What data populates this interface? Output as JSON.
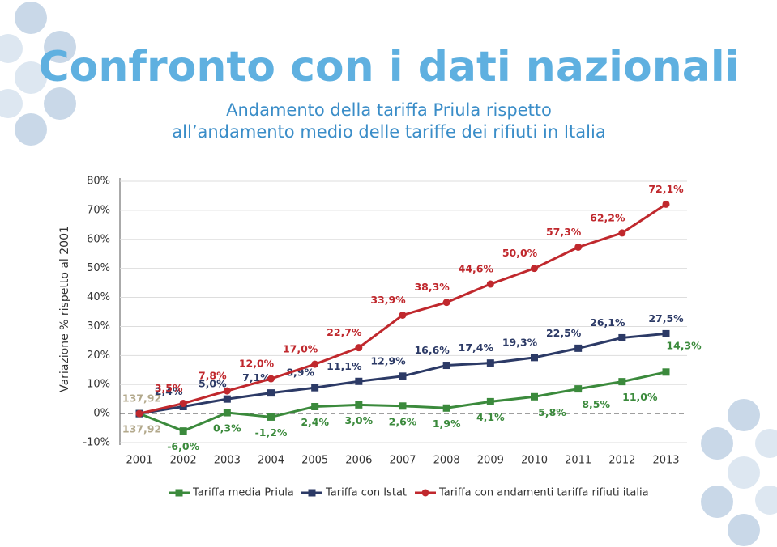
{
  "chart_data": {
    "type": "line",
    "title": "Confronto con i dati nazionali",
    "subtitle": [
      "Andamento della tariffa Priula rispetto",
      "all’andamento medio delle tariffe dei rifiuti in Italia"
    ],
    "y_label": "Variazione % rispetto al 2001",
    "categories": [
      "2001",
      "2002",
      "2003",
      "2004",
      "2005",
      "2006",
      "2007",
      "2008",
      "2009",
      "2010",
      "2011",
      "2012",
      "2013"
    ],
    "series": [
      {
        "name": "Tariffa media Priula",
        "color": "#3b8a3c",
        "values": [
          0,
          -6.0,
          0.3,
          -1.2,
          2.4,
          3.0,
          2.6,
          1.9,
          4.1,
          5.8,
          8.5,
          11.0,
          14.3
        ],
        "value_labels": [
          null,
          "-6,0%",
          "0,3%",
          "-1,2%",
          "2,4%",
          "3,0%",
          "2,6%",
          "1,9%",
          "4,1%",
          "5,8%",
          "8,5%",
          "11,0%",
          "14,3%"
        ]
      },
      {
        "name": "Tariffa con Istat",
        "color": "#2c3a66",
        "values": [
          0,
          2.4,
          5.0,
          7.1,
          8.9,
          11.1,
          12.9,
          16.6,
          17.4,
          19.3,
          22.5,
          26.1,
          27.5
        ],
        "value_labels": [
          null,
          "2,4%",
          "5,0%",
          "7,1%",
          "8,9%",
          "11,1%",
          "12,9%",
          "16,6%",
          "17,4%",
          "19,3%",
          "22,5%",
          "26,1%",
          "27,5%"
        ]
      },
      {
        "name": "Tariffa con andamenti tariffa rifiuti italia",
        "color": "#c0282d",
        "values": [
          0,
          3.5,
          7.8,
          12.0,
          17.0,
          22.7,
          33.9,
          38.3,
          44.6,
          50.0,
          57.3,
          62.2,
          72.1
        ],
        "value_labels": [
          null,
          "3,5%",
          "7,8%",
          "12,0%",
          "17,0%",
          "22,7%",
          "33,9%",
          "38,3%",
          "44,6%",
          "50,0%",
          "57,3%",
          "62,2%",
          "72,1%"
        ]
      }
    ],
    "annotations": [
      "137,92",
      "137,92"
    ],
    "ylim": [
      -10,
      80
    ],
    "yticks": [
      {
        "value": -10,
        "label": "-10%"
      },
      {
        "value": 0,
        "label": "0%"
      },
      {
        "value": 10,
        "label": "10%"
      },
      {
        "value": 20,
        "label": "20%"
      },
      {
        "value": 30,
        "label": "30%"
      },
      {
        "value": 40,
        "label": "40%"
      },
      {
        "value": 50,
        "label": "50%"
      },
      {
        "value": 60,
        "label": "60%"
      },
      {
        "value": 70,
        "label": "70%"
      },
      {
        "value": 80,
        "label": "80%"
      }
    ],
    "grid": true
  }
}
